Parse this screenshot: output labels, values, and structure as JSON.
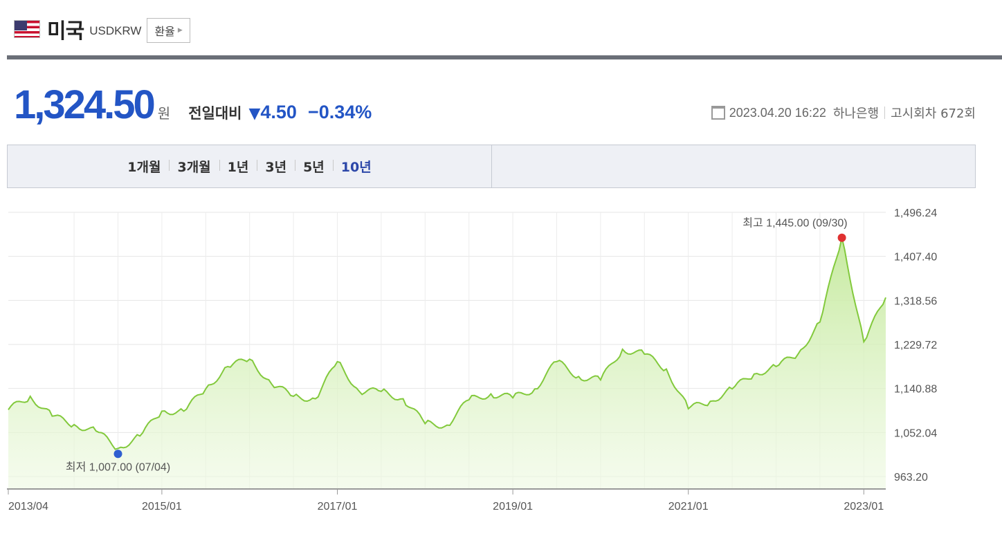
{
  "header": {
    "country": "미국",
    "code": "USDKRW",
    "rate_button": "환율",
    "flag_icon": "us-flag-icon"
  },
  "price": {
    "value": "1,324.50",
    "unit": "원",
    "compare_label": "전일대비",
    "direction_icon": "down-triangle-icon",
    "change": "4.50",
    "change_pct": "−0.34%",
    "color": "#2355c5"
  },
  "meta": {
    "icon": "calendar-icon",
    "datetime": "2023.04.20 16:22",
    "bank": "하나은행",
    "notice": "고시회차 672회"
  },
  "periods": {
    "items": [
      "1개월",
      "3개월",
      "1년",
      "3년",
      "5년",
      "10년"
    ],
    "active": "10년"
  },
  "chart_data": {
    "type": "area",
    "y_ticks": [
      "1,496.24",
      "1,407.40",
      "1,318.56",
      "1,229.72",
      "1,140.88",
      "1,052.04",
      "963.20"
    ],
    "x_ticks": [
      "2013/04",
      "2015/01",
      "2017/01",
      "2019/01",
      "2021/01",
      "2023/01"
    ],
    "ylim": [
      963.2,
      1496.24
    ],
    "grid": true,
    "max_label": "최고 1,445.00 (09/30)",
    "min_label": "최저 1,007.00 (07/04)",
    "max_color": "#e03131",
    "min_color": "#2f5fd0",
    "line_color": "#82c93c",
    "series": [
      {
        "x": [
          "2013/04",
          "2013/07",
          "2013/10",
          "2014/01",
          "2014/04",
          "2014/07",
          "2014/10",
          "2015/01",
          "2015/04",
          "2015/07",
          "2015/10",
          "2016/01",
          "2016/04",
          "2016/07",
          "2016/10",
          "2017/01",
          "2017/04",
          "2017/07",
          "2017/10",
          "2018/01",
          "2018/04",
          "2018/07",
          "2018/10",
          "2019/01",
          "2019/04",
          "2019/07",
          "2019/10",
          "2020/01",
          "2020/04",
          "2020/07",
          "2020/10",
          "2021/01",
          "2021/04",
          "2021/07",
          "2021/10",
          "2022/01",
          "2022/04",
          "2022/07",
          "2022/10",
          "2023/01",
          "2023/04"
        ],
        "values": [
          1098,
          1125,
          1085,
          1068,
          1055,
          1020,
          1045,
          1095,
          1095,
          1140,
          1185,
          1200,
          1150,
          1125,
          1120,
          1195,
          1135,
          1135,
          1120,
          1070,
          1067,
          1118,
          1130,
          1122,
          1140,
          1195,
          1165,
          1158,
          1220,
          1210,
          1180,
          1100,
          1115,
          1140,
          1170,
          1185,
          1210,
          1275,
          1445,
          1235,
          1324.5
        ]
      }
    ]
  }
}
